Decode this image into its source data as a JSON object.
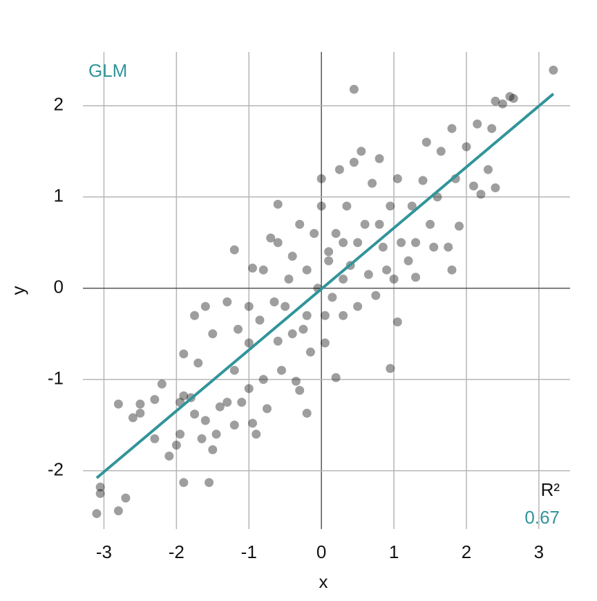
{
  "chart_data": {
    "type": "scatter",
    "x_label": "x",
    "y_label": "y",
    "xlim": [
      -3.29,
      3.43
    ],
    "ylim": [
      -2.64,
      2.59
    ],
    "xticks": [
      -3,
      -2,
      -1,
      0,
      1,
      2,
      3
    ],
    "yticks": [
      -2,
      -1,
      0,
      1,
      2
    ],
    "grid": true,
    "point_color": "rgba(0,0,0,0.38)",
    "x": [
      3.2,
      2.6,
      2.65,
      2.5,
      2.4,
      0.45,
      -3.1,
      -3.05,
      -3.05,
      -2.8,
      -2.7,
      -2.8,
      -2.6,
      -2.5,
      -2.5,
      -2.3,
      -2.3,
      -2.2,
      -2.1,
      -2.0,
      -1.95,
      -1.9,
      -1.55,
      -1.9,
      -1.95,
      -1.9,
      -1.8,
      -1.75,
      -1.75,
      -1.65,
      -1.6,
      -1.5,
      -1.45,
      -1.7,
      -1.6,
      -1.5,
      -1.4,
      -1.3,
      -1.3,
      -1.2,
      -1.15,
      -1.2,
      -1.1,
      -1.0,
      -1.0,
      -0.95,
      -0.95,
      -0.9,
      -0.85,
      -0.8,
      -0.75,
      -1.2,
      -0.7,
      -0.6,
      -0.6,
      -0.65,
      -0.6,
      -0.55,
      -0.5,
      -0.45,
      -0.4,
      -0.35,
      -0.3,
      -0.3,
      -0.25,
      -0.2,
      -0.2,
      -0.15,
      -0.1,
      -0.05,
      0.0,
      0.0,
      0.05,
      0.05,
      0.1,
      0.15,
      0.2,
      0.2,
      0.25,
      0.3,
      0.3,
      0.35,
      0.4,
      0.45,
      0.5,
      0.5,
      0.55,
      0.6,
      0.65,
      0.7,
      0.75,
      0.8,
      0.85,
      0.9,
      0.95,
      0.95,
      1.0,
      1.05,
      1.05,
      1.1,
      1.2,
      1.25,
      1.3,
      1.4,
      1.45,
      1.5,
      1.55,
      1.6,
      1.65,
      1.75,
      1.8,
      1.8,
      1.85,
      1.9,
      2.0,
      2.1,
      2.15,
      2.2,
      2.3,
      2.35,
      2.4,
      1.3,
      0.8,
      -0.8,
      -1.0,
      -0.4,
      0.1,
      0.3,
      -0.2
    ],
    "y": [
      2.39,
      2.1,
      2.08,
      2.02,
      2.05,
      2.18,
      -2.47,
      -2.25,
      -2.18,
      -2.44,
      -2.3,
      -1.27,
      -1.42,
      -1.27,
      -1.37,
      -1.22,
      -1.65,
      -1.05,
      -1.84,
      -1.72,
      -1.6,
      -2.13,
      -2.13,
      -0.72,
      -1.25,
      -1.18,
      -1.2,
      -0.3,
      -1.38,
      -1.65,
      -1.45,
      -1.77,
      -1.6,
      -0.82,
      -0.2,
      -0.5,
      -1.3,
      -0.15,
      -1.25,
      -1.5,
      -0.45,
      -0.9,
      -1.25,
      -0.6,
      -1.1,
      0.22,
      -1.48,
      -1.6,
      -0.35,
      -1.0,
      -1.32,
      0.42,
      0.55,
      0.5,
      0.92,
      -0.15,
      -0.58,
      -0.9,
      -0.2,
      0.1,
      0.35,
      -1.02,
      -1.12,
      0.7,
      -0.45,
      -1.37,
      0.2,
      -0.7,
      0.6,
      0.0,
      1.2,
      0.9,
      -0.3,
      -0.6,
      0.4,
      -0.1,
      0.6,
      -0.98,
      1.3,
      -0.3,
      0.1,
      0.9,
      0.25,
      1.38,
      0.5,
      -0.2,
      1.5,
      0.7,
      0.15,
      1.15,
      -0.08,
      1.42,
      0.45,
      0.2,
      -0.88,
      0.9,
      0.1,
      -0.37,
      1.2,
      0.5,
      0.3,
      0.9,
      0.12,
      1.18,
      1.6,
      0.7,
      0.45,
      1.0,
      1.5,
      0.45,
      1.75,
      0.2,
      1.2,
      0.68,
      1.55,
      1.12,
      1.8,
      1.03,
      1.3,
      1.75,
      1.1,
      0.5,
      0.7,
      0.2,
      -0.2,
      -0.5,
      0.3,
      0.5,
      -0.3
    ],
    "line": {
      "color": "#31949a",
      "x": [
        -3.1,
        3.2
      ],
      "y": [
        -2.08,
        2.13
      ]
    },
    "annotations": [
      "GLM",
      "R²",
      "0.67"
    ]
  }
}
